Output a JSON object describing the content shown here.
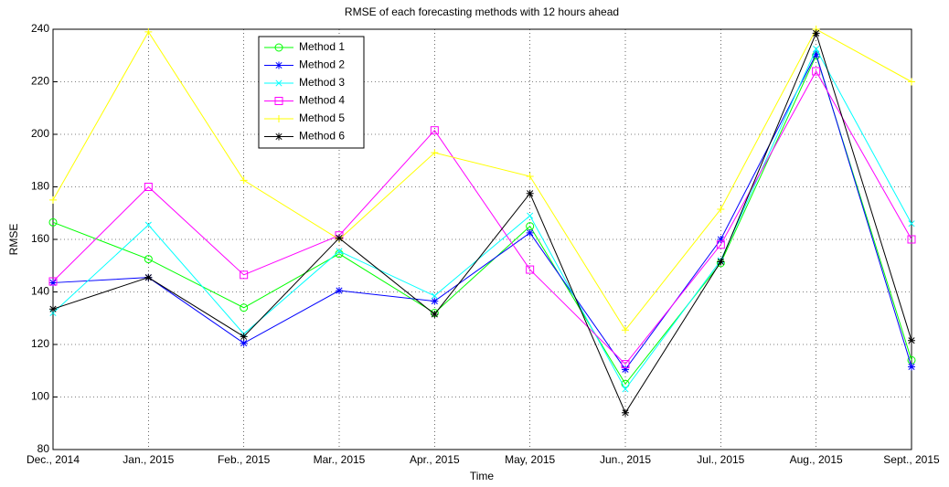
{
  "chart_data": {
    "type": "line",
    "title": "RMSE of each forecasting methods with 12 hours ahead",
    "x_label": "Time",
    "y_label": "RMSE",
    "categories": [
      "Dec., 2014",
      "Jan., 2015",
      "Feb., 2015",
      "Mar., 2015",
      "Apr., 2015",
      "May, 2015",
      "Jun., 2015",
      "Jul., 2015",
      "Aug., 2015",
      "Sept., 2015"
    ],
    "series": [
      {
        "name": "Method 1",
        "color": "#00ff00",
        "marker": "circle",
        "values": [
          166.5,
          152.5,
          134,
          154.5,
          132,
          165,
          105,
          151,
          230,
          114
        ]
      },
      {
        "name": "Method 2",
        "color": "#0000ff",
        "marker": "asterisk",
        "values": [
          143.5,
          145.5,
          120.5,
          140.5,
          136.5,
          162.5,
          110.5,
          160,
          230.5,
          111.5
        ]
      },
      {
        "name": "Method 3",
        "color": "#00ffff",
        "marker": "x",
        "values": [
          132,
          165.5,
          124,
          155.5,
          138.5,
          169,
          103,
          152,
          232.5,
          166
        ]
      },
      {
        "name": "Method 4",
        "color": "#ff00ff",
        "marker": "square",
        "values": [
          144,
          180,
          146.5,
          161.5,
          201.5,
          148.5,
          112.5,
          158,
          224,
          160
        ]
      },
      {
        "name": "Method 5",
        "color": "#ffff00",
        "marker": "plus",
        "values": [
          175,
          239,
          182.5,
          160,
          193,
          184,
          125.5,
          171.5,
          240,
          220
        ]
      },
      {
        "name": "Method 6",
        "color": "#000000",
        "marker": "star",
        "values": [
          133.5,
          145.5,
          123,
          160.5,
          131.5,
          177.5,
          94,
          151.5,
          238.5,
          121.5
        ]
      }
    ],
    "ylim": [
      80,
      240
    ],
    "yticks": [
      80,
      100,
      120,
      140,
      160,
      180,
      200,
      220,
      240
    ],
    "grid": true,
    "legend": "upper left"
  }
}
